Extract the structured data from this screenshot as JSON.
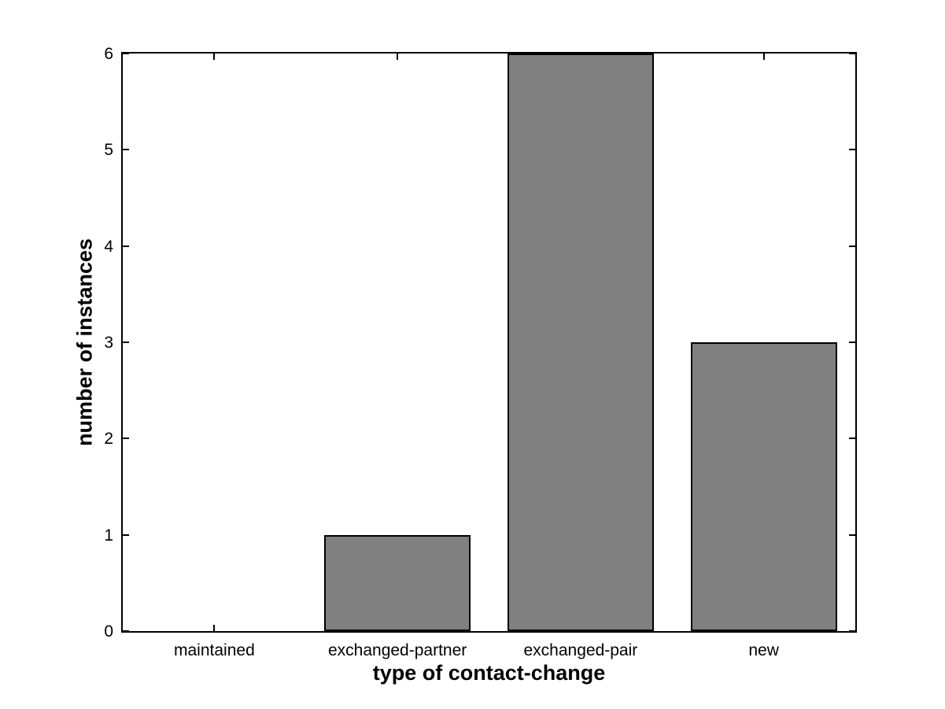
{
  "chart_data": {
    "type": "bar",
    "title": "",
    "categories": [
      "maintained",
      "exchanged-partner",
      "exchanged-pair",
      "new"
    ],
    "values": [
      0,
      1,
      6,
      3
    ],
    "xlabel": "type of contact-change",
    "ylabel": "number of instances",
    "ylim": [
      0,
      6
    ],
    "yticks": [
      0,
      1,
      2,
      3,
      4,
      5,
      6
    ],
    "bar_color": "#808080",
    "bar_edge_color": "#000000",
    "bar_width_ratio": 0.8,
    "grid": false,
    "legend": null,
    "background_color": "#ffffff",
    "axes_box": true,
    "tick_direction": "in"
  }
}
